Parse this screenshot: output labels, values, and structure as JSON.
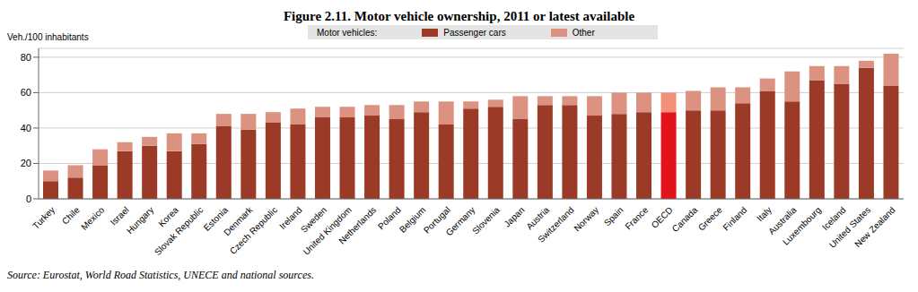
{
  "chart_data": {
    "type": "bar",
    "title": "Figure 2.11. Motor vehicle ownership, 2011 or latest available",
    "y_label": "Veh./100 inhabitants",
    "legend_title": "Motor vehicles:",
    "source": "Source: Eurostat, World Road Statistics, UNECE and national sources.",
    "categories": [
      "Turkey",
      "Chile",
      "Mexico",
      "Israel",
      "Hungary",
      "Korea",
      "Slovak Republic",
      "Estonia",
      "Denmark",
      "Czech Republic",
      "Ireland",
      "Sweden",
      "United Kingdom",
      "Netherlands",
      "Poland",
      "Belgium",
      "Portugal",
      "Germany",
      "Slovenia",
      "Japan",
      "Austria",
      "Switzerland",
      "Norway",
      "Spain",
      "France",
      "OECD",
      "Canada",
      "Greece",
      "Finland",
      "Italy",
      "Australia",
      "Luxembourg",
      "Iceland",
      "United States",
      "New Zealand"
    ],
    "series": [
      {
        "name": "Passenger cars",
        "color": "#9c3a28",
        "colors": [
          "#9c3a28",
          "#9c3a28",
          "#9c3a28",
          "#9c3a28",
          "#9c3a28",
          "#9c3a28",
          "#9c3a28",
          "#9c3a28",
          "#9c3a28",
          "#9c3a28",
          "#9c3a28",
          "#9c3a28",
          "#9c3a28",
          "#9c3a28",
          "#9c3a28",
          "#9c3a28",
          "#9c3a28",
          "#9c3a28",
          "#9c3a28",
          "#9c3a28",
          "#9c3a28",
          "#9c3a28",
          "#9c3a28",
          "#9c3a28",
          "#9c3a28",
          "#e3121b",
          "#9c3a28",
          "#9c3a28",
          "#9c3a28",
          "#9c3a28",
          "#9c3a28",
          "#9c3a28",
          "#9c3a28",
          "#9c3a28",
          "#9c3a28"
        ],
        "values": [
          10,
          12,
          19,
          27,
          30,
          27,
          31,
          41,
          39,
          43,
          42,
          46,
          46,
          47,
          45,
          49,
          42,
          51,
          52,
          45,
          53,
          53,
          47,
          48,
          49,
          49,
          50,
          50,
          54,
          61,
          55,
          67,
          65,
          74,
          64
        ]
      },
      {
        "name": "Other",
        "color": "#dc9280",
        "colors": [
          "#dc9280",
          "#dc9280",
          "#dc9280",
          "#dc9280",
          "#dc9280",
          "#dc9280",
          "#dc9280",
          "#dc9280",
          "#dc9280",
          "#dc9280",
          "#dc9280",
          "#dc9280",
          "#dc9280",
          "#dc9280",
          "#dc9280",
          "#dc9280",
          "#dc9280",
          "#dc9280",
          "#dc9280",
          "#dc9280",
          "#dc9280",
          "#dc9280",
          "#dc9280",
          "#dc9280",
          "#dc9280",
          "#f4907a",
          "#dc9280",
          "#dc9280",
          "#dc9280",
          "#dc9280",
          "#dc9280",
          "#dc9280",
          "#dc9280",
          "#dc9280",
          "#dc9280"
        ],
        "values": [
          6,
          7,
          9,
          5,
          5,
          10,
          6,
          7,
          9,
          6,
          9,
          6,
          6,
          6,
          8,
          6,
          13,
          4,
          4,
          13,
          5,
          5,
          11,
          12,
          11,
          11,
          11,
          13,
          9,
          7,
          17,
          8,
          10,
          4,
          18
        ]
      }
    ],
    "ylim": [
      0,
      85
    ],
    "yticks": [
      0,
      20,
      40,
      60,
      80
    ],
    "stacked": true,
    "grid": true,
    "legend": "top"
  }
}
